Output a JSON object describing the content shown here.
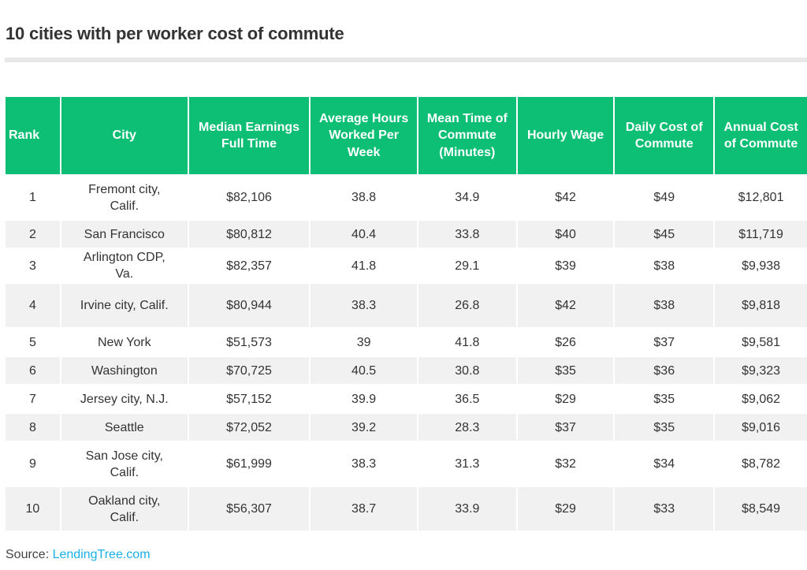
{
  "title": "10 cities with per worker cost of commute",
  "table": {
    "headers": [
      "Rank",
      "City",
      "Median Earnings Full Time",
      "Average Hours Worked Per Week",
      "Mean Time of Commute (Minutes)",
      "Hourly Wage",
      "Daily Cost of Commute",
      "Annual Cost of Commute"
    ],
    "rows": [
      [
        "1",
        "Fremont city, Calif.",
        "$82,106",
        "38.8",
        "34.9",
        "$42",
        "$49",
        "$12,801"
      ],
      [
        "2",
        "San Francisco",
        "$80,812",
        "40.4",
        "33.8",
        "$40",
        "$45",
        "$11,719"
      ],
      [
        "3",
        "Arlington CDP, Va.",
        "$82,357",
        "41.8",
        "29.1",
        "$39",
        "$38",
        "$9,938"
      ],
      [
        "4",
        "Irvine city, Calif.",
        "$80,944",
        "38.3",
        "26.8",
        "$42",
        "$38",
        "$9,818"
      ],
      [
        "5",
        "New York",
        "$51,573",
        "39",
        "41.8",
        "$26",
        "$37",
        "$9,581"
      ],
      [
        "6",
        "Washington",
        "$70,725",
        "40.5",
        "30.8",
        "$35",
        "$36",
        "$9,323"
      ],
      [
        "7",
        "Jersey city, N.J.",
        "$57,152",
        "39.9",
        "36.5",
        "$29",
        "$35",
        "$9,062"
      ],
      [
        "8",
        "Seattle",
        "$72,052",
        "39.2",
        "28.3",
        "$37",
        "$35",
        "$9,016"
      ],
      [
        "9",
        "San Jose city, Calif.",
        "$61,999",
        "38.3",
        "31.3",
        "$32",
        "$34",
        "$8,782"
      ],
      [
        "10",
        "Oakland city, Calif.",
        "$56,307",
        "38.7",
        "33.9",
        "$29",
        "$33",
        "$8,549"
      ]
    ]
  },
  "source": {
    "label": "Source:",
    "link": "LendingTree.com"
  },
  "colors": {
    "header": "#0dbf74",
    "stripe": "#f1f1f1",
    "link": "#1ab0e8"
  }
}
